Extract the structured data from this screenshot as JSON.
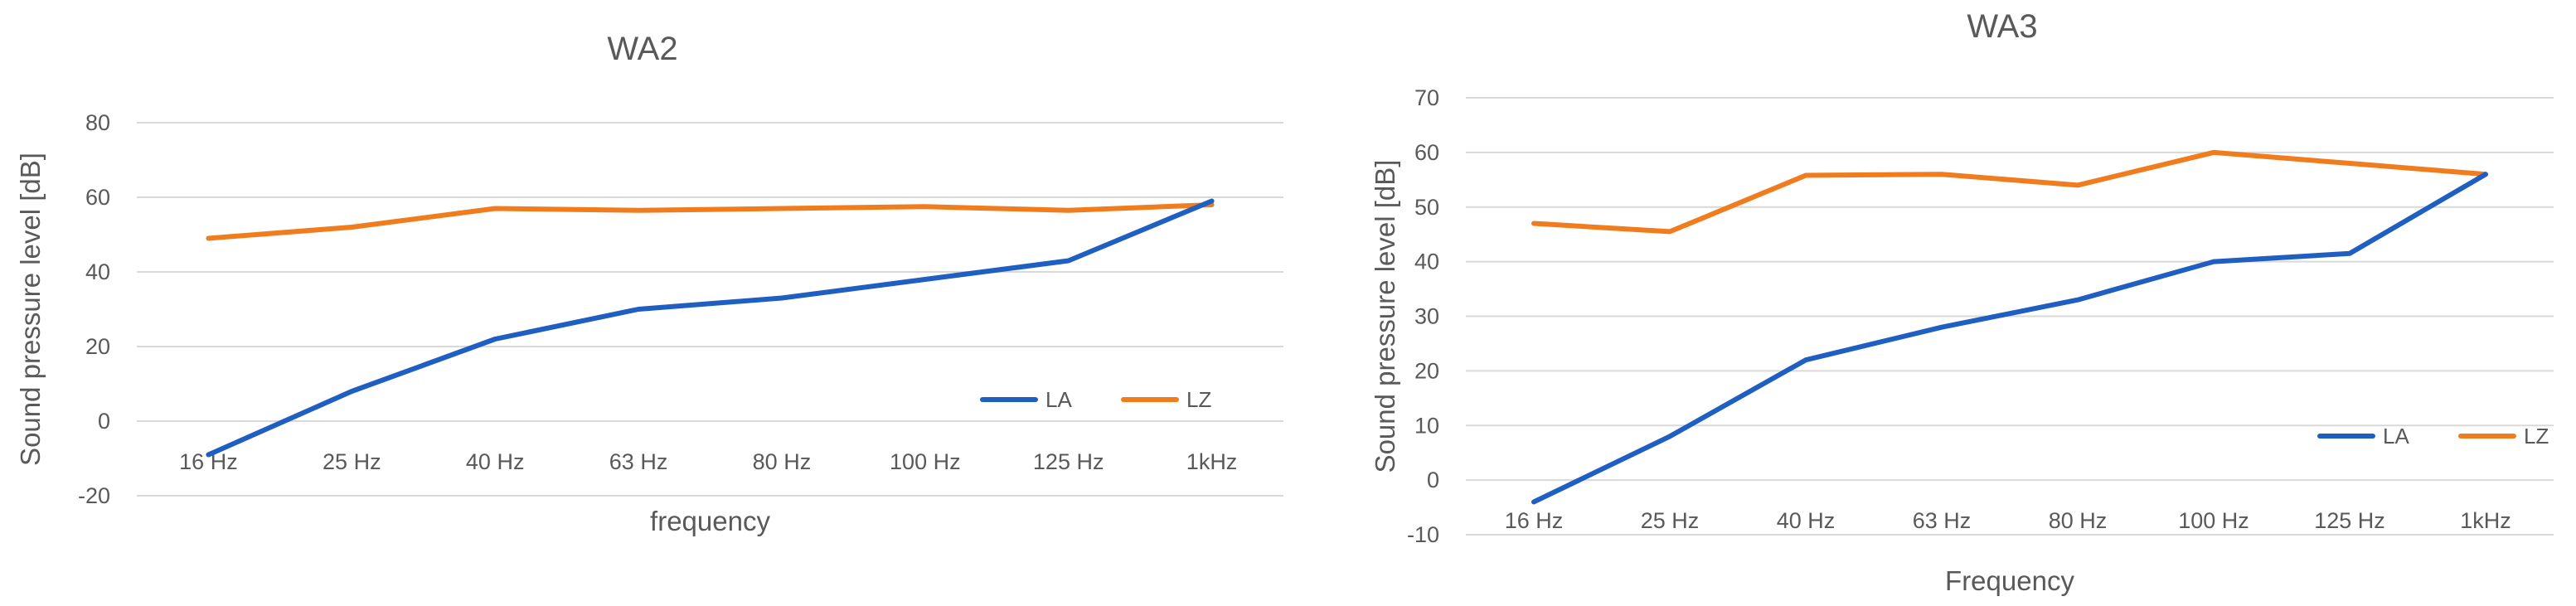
{
  "chart_data": [
    {
      "type": "line",
      "title": "WA2",
      "xlabel": "frequency",
      "ylabel": "Sound pressure level [dB]",
      "categories": [
        "16 Hz",
        "25 Hz",
        "40 Hz",
        "63 Hz",
        "80 Hz",
        "100 Hz",
        "125 Hz",
        "1kHz"
      ],
      "ylim": [
        -20,
        80
      ],
      "ystep": 20,
      "grid": true,
      "legend": "bottom-right",
      "series": [
        {
          "name": "LA",
          "color": "#1f5fc2",
          "values": [
            -9,
            8,
            22,
            30,
            33,
            38,
            43,
            59
          ]
        },
        {
          "name": "LZ",
          "color": "#f07c1e",
          "values": [
            49,
            52,
            57,
            56.5,
            57,
            57.5,
            56.5,
            58
          ]
        }
      ]
    },
    {
      "type": "line",
      "title": "WA3",
      "xlabel": "Frequency",
      "ylabel": "Sound pressure level [dB]",
      "categories": [
        "16 Hz",
        "25 Hz",
        "40 Hz",
        "63 Hz",
        "80 Hz",
        "100 Hz",
        "125 Hz",
        "1kHz"
      ],
      "ylim": [
        -10,
        70
      ],
      "ystep": 10,
      "grid": true,
      "legend": "bottom-right",
      "series": [
        {
          "name": "LA",
          "color": "#1f5fc2",
          "values": [
            -4,
            8,
            22,
            28,
            33,
            40,
            41.5,
            56
          ]
        },
        {
          "name": "LZ",
          "color": "#f07c1e",
          "values": [
            47,
            45.5,
            55.8,
            56,
            54,
            60,
            58,
            56
          ]
        }
      ]
    }
  ]
}
